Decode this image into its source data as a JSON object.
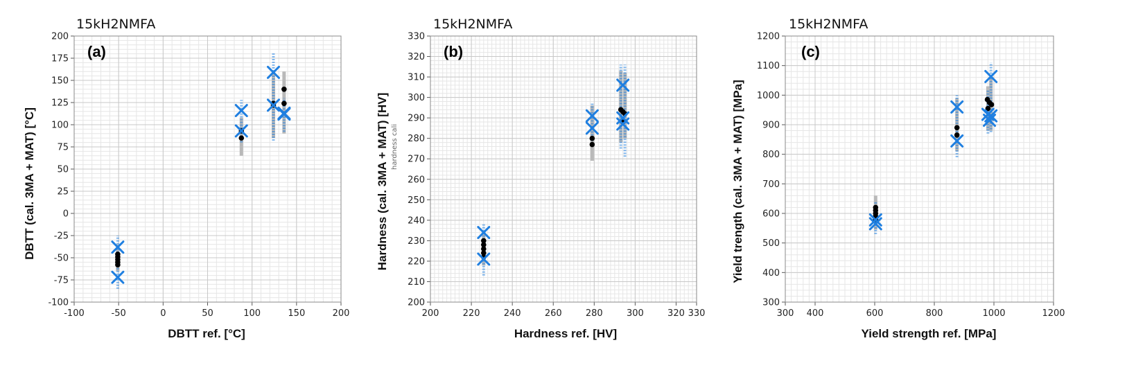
{
  "colors": {
    "gray": "#b9b9b9",
    "blue": "#1f7fe0",
    "black": "#000000",
    "grid_major": "#c8c8c8",
    "grid_minor": "#e6e6e6"
  },
  "chart_data": [
    {
      "type": "scatter",
      "title": "15kH2NMFA",
      "panel_label": "(a)",
      "xlabel": "DBTT ref. [°C]",
      "ylabel": "DBTT (cal. 3MA + MAT) [°C]",
      "xlim": [
        -100,
        200
      ],
      "ylim": [
        -100,
        200
      ],
      "xticks": [
        -100,
        -50,
        0,
        50,
        100,
        150,
        200
      ],
      "xtick_labels": [
        "-100",
        "-50",
        "0",
        "50",
        "100",
        "150",
        "200"
      ],
      "yticks": [
        -100,
        -75,
        -50,
        -25,
        0,
        25,
        50,
        75,
        100,
        125,
        150,
        175,
        200
      ],
      "ytick_labels": [
        "-100",
        "-75",
        "-50",
        "-25",
        "0",
        "25",
        "50",
        "75",
        "100",
        "125",
        "150",
        "175",
        "200"
      ],
      "minor_x": 10,
      "minor_y": 5,
      "gray_bars": [
        {
          "x": -51,
          "lo": -65,
          "hi": -35
        },
        {
          "x": 88,
          "lo": 65,
          "hi": 108
        },
        {
          "x": 124,
          "lo": 85,
          "hi": 160
        },
        {
          "x": 136,
          "lo": 90,
          "hi": 160
        }
      ],
      "blue_spread": [
        {
          "x": -51,
          "lo": -85,
          "hi": -25
        },
        {
          "x": 88,
          "lo": 80,
          "hi": 128
        },
        {
          "x": 124,
          "lo": 82,
          "hi": 182
        },
        {
          "x": 136,
          "lo": 92,
          "hi": 130
        }
      ],
      "black_points": [
        {
          "x": -51,
          "y": -46
        },
        {
          "x": -51,
          "y": -49
        },
        {
          "x": -51,
          "y": -52
        },
        {
          "x": -51,
          "y": -55
        },
        {
          "x": -51,
          "y": -58
        },
        {
          "x": 88,
          "y": 93
        },
        {
          "x": 88,
          "y": 85
        },
        {
          "x": 124,
          "y": 124
        },
        {
          "x": 124,
          "y": 122
        },
        {
          "x": 136,
          "y": 140
        },
        {
          "x": 136,
          "y": 124
        }
      ],
      "blue_x_markers": [
        {
          "x": -51,
          "y": -38
        },
        {
          "x": -51,
          "y": -72
        },
        {
          "x": 88,
          "y": 116
        },
        {
          "x": 88,
          "y": 93
        },
        {
          "x": 124,
          "y": 159
        },
        {
          "x": 124,
          "y": 122
        },
        {
          "x": 136,
          "y": 113
        },
        {
          "x": 136,
          "y": 112
        }
      ]
    },
    {
      "type": "scatter",
      "title": "15kH2NMFA",
      "panel_label": "(b)",
      "xlabel": "Hardness ref. [HV]",
      "ylabel": "Hardness (cal. 3MA + MAT) [HV]",
      "annotation": "hardness cali",
      "xlim": [
        200,
        330
      ],
      "ylim": [
        200,
        330
      ],
      "xticks": [
        200,
        220,
        240,
        260,
        280,
        300,
        320,
        330
      ],
      "xtick_labels": [
        "200",
        "220",
        "240",
        "260",
        "280",
        "300",
        "320",
        "330"
      ],
      "yticks": [
        200,
        210,
        220,
        230,
        240,
        250,
        260,
        270,
        280,
        290,
        300,
        310,
        320,
        330
      ],
      "ytick_labels": [
        "200",
        "210",
        "220",
        "230",
        "240",
        "250",
        "260",
        "270",
        "280",
        "290",
        "300",
        "310",
        "320",
        "330"
      ],
      "minor_x": 2,
      "minor_y": 2,
      "gray_bars": [
        {
          "x": 226,
          "lo": 218,
          "hi": 234
        },
        {
          "x": 279,
          "lo": 269,
          "hi": 296
        },
        {
          "x": 293,
          "lo": 278,
          "hi": 313
        },
        {
          "x": 295,
          "lo": 280,
          "hi": 312
        }
      ],
      "blue_spread": [
        {
          "x": 226,
          "lo": 213,
          "hi": 238
        },
        {
          "x": 279,
          "lo": 276,
          "hi": 297
        },
        {
          "x": 293,
          "lo": 275,
          "hi": 316
        },
        {
          "x": 295,
          "lo": 271,
          "hi": 316
        }
      ],
      "black_points": [
        {
          "x": 226,
          "y": 230
        },
        {
          "x": 226,
          "y": 228
        },
        {
          "x": 226,
          "y": 226
        },
        {
          "x": 226,
          "y": 224
        },
        {
          "x": 226,
          "y": 222
        },
        {
          "x": 279,
          "y": 280
        },
        {
          "x": 279,
          "y": 277
        },
        {
          "x": 293,
          "y": 294
        },
        {
          "x": 294,
          "y": 293
        },
        {
          "x": 295,
          "y": 292
        },
        {
          "x": 294,
          "y": 288
        }
      ],
      "blue_x_markers": [
        {
          "x": 226,
          "y": 234
        },
        {
          "x": 226,
          "y": 221
        },
        {
          "x": 279,
          "y": 291
        },
        {
          "x": 279,
          "y": 285
        },
        {
          "x": 294,
          "y": 306
        },
        {
          "x": 294,
          "y": 290
        },
        {
          "x": 294,
          "y": 287
        }
      ]
    },
    {
      "type": "scatter",
      "title": "15kH2NMFA",
      "panel_label": "(c)",
      "xlabel": "Yield strength ref. [MPa]",
      "ylabel": "Yield trength (cal. 3MA + MAT) [MPa]",
      "xlim": [
        300,
        1200
      ],
      "ylim": [
        300,
        1200
      ],
      "xticks": [
        300,
        400,
        600,
        800,
        1000,
        1200
      ],
      "xtick_labels": [
        "300",
        "400",
        "600",
        "800",
        "1000",
        "1200"
      ],
      "yticks": [
        300,
        400,
        500,
        600,
        700,
        800,
        900,
        1000,
        1100,
        1200
      ],
      "ytick_labels": [
        "300",
        "400",
        "500",
        "600",
        "700",
        "800",
        "900",
        "1000",
        "1100",
        "1200"
      ],
      "minor_x": 20,
      "minor_y": 20,
      "gray_bars": [
        {
          "x": 603,
          "lo": 545,
          "hi": 660
        },
        {
          "x": 876,
          "lo": 810,
          "hi": 990
        },
        {
          "x": 980,
          "lo": 880,
          "hi": 1030
        },
        {
          "x": 990,
          "lo": 880,
          "hi": 1060
        }
      ],
      "blue_spread": [
        {
          "x": 603,
          "lo": 530,
          "hi": 640
        },
        {
          "x": 876,
          "lo": 790,
          "hi": 1000
        },
        {
          "x": 980,
          "lo": 870,
          "hi": 1020
        },
        {
          "x": 990,
          "lo": 875,
          "hi": 1110
        }
      ],
      "black_points": [
        {
          "x": 603,
          "y": 620
        },
        {
          "x": 603,
          "y": 610
        },
        {
          "x": 603,
          "y": 600
        },
        {
          "x": 603,
          "y": 590
        },
        {
          "x": 603,
          "y": 580
        },
        {
          "x": 876,
          "y": 890
        },
        {
          "x": 876,
          "y": 865
        },
        {
          "x": 978,
          "y": 985
        },
        {
          "x": 985,
          "y": 975
        },
        {
          "x": 992,
          "y": 968
        },
        {
          "x": 980,
          "y": 955
        }
      ],
      "blue_x_markers": [
        {
          "x": 603,
          "y": 578
        },
        {
          "x": 603,
          "y": 565
        },
        {
          "x": 876,
          "y": 960
        },
        {
          "x": 876,
          "y": 845
        },
        {
          "x": 990,
          "y": 1063
        },
        {
          "x": 980,
          "y": 935
        },
        {
          "x": 990,
          "y": 930
        },
        {
          "x": 985,
          "y": 915
        }
      ]
    }
  ]
}
